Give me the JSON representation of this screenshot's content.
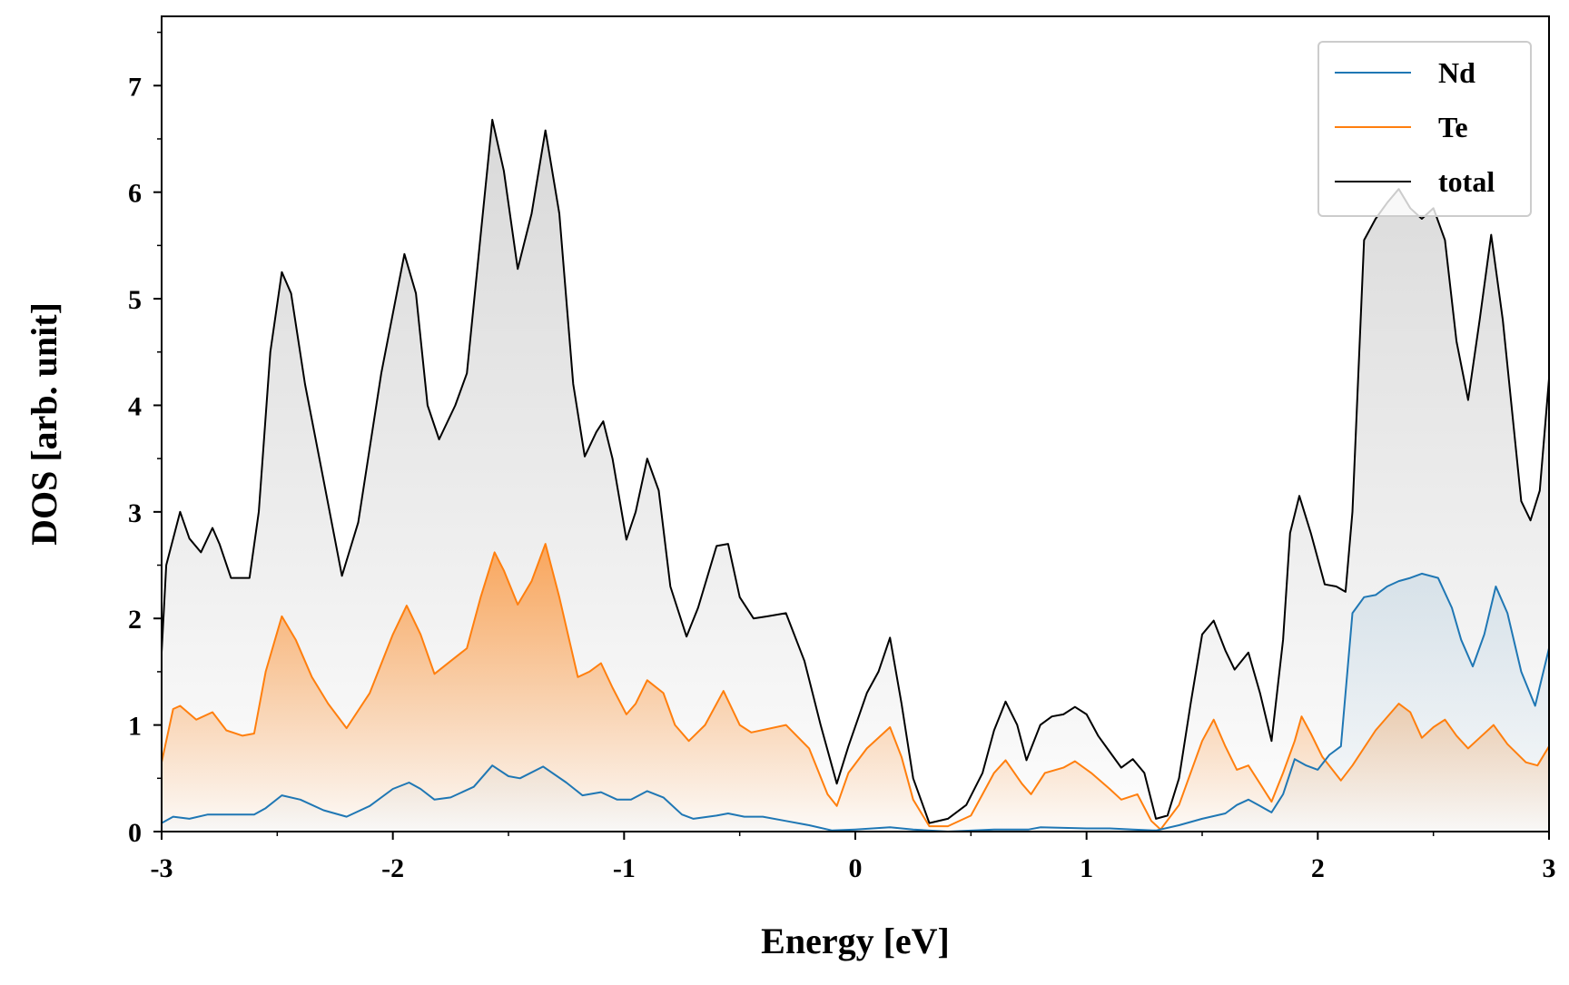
{
  "chart_data": {
    "type": "area",
    "xlabel": "Energy [eV]",
    "ylabel": "DOS [arb. unit]",
    "xlim": [
      -3,
      3
    ],
    "ylim": [
      0,
      7.65
    ],
    "x_ticks": [
      -3,
      -2,
      -1,
      0,
      1,
      2,
      3
    ],
    "x_tick_labels": [
      "-3",
      "-2",
      "-1",
      "0",
      "1",
      "2",
      "3"
    ],
    "y_ticks": [
      0,
      1,
      2,
      3,
      4,
      5,
      6,
      7
    ],
    "y_tick_labels": [
      "0",
      "1",
      "2",
      "3",
      "4",
      "5",
      "6",
      "7"
    ],
    "grid": false,
    "legend_position": "top-right",
    "legend": [
      "Nd",
      "Te",
      "total"
    ],
    "series": [
      {
        "name": "Nd",
        "color": "#1f77b4",
        "points": [
          [
            -3,
            0.08
          ],
          [
            -2.95,
            0.14
          ],
          [
            -2.88,
            0.12
          ],
          [
            -2.8,
            0.16
          ],
          [
            -2.6,
            0.16
          ],
          [
            -2.55,
            0.22
          ],
          [
            -2.48,
            0.34
          ],
          [
            -2.4,
            0.3
          ],
          [
            -2.3,
            0.2
          ],
          [
            -2.2,
            0.14
          ],
          [
            -2.1,
            0.24
          ],
          [
            -2.0,
            0.4
          ],
          [
            -1.93,
            0.46
          ],
          [
            -1.88,
            0.4
          ],
          [
            -1.82,
            0.3
          ],
          [
            -1.75,
            0.32
          ],
          [
            -1.65,
            0.42
          ],
          [
            -1.57,
            0.62
          ],
          [
            -1.5,
            0.52
          ],
          [
            -1.45,
            0.5
          ],
          [
            -1.35,
            0.61
          ],
          [
            -1.25,
            0.46
          ],
          [
            -1.18,
            0.34
          ],
          [
            -1.1,
            0.37
          ],
          [
            -1.03,
            0.3
          ],
          [
            -0.97,
            0.3
          ],
          [
            -0.9,
            0.38
          ],
          [
            -0.83,
            0.32
          ],
          [
            -0.75,
            0.16
          ],
          [
            -0.7,
            0.12
          ],
          [
            -0.6,
            0.15
          ],
          [
            -0.55,
            0.17
          ],
          [
            -0.48,
            0.14
          ],
          [
            -0.4,
            0.14
          ],
          [
            -0.3,
            0.1
          ],
          [
            -0.2,
            0.06
          ],
          [
            -0.1,
            0.01
          ],
          [
            0.0,
            0.02
          ],
          [
            0.15,
            0.04
          ],
          [
            0.25,
            0.02
          ],
          [
            0.4,
            0.0
          ],
          [
            0.6,
            0.02
          ],
          [
            0.75,
            0.02
          ],
          [
            0.8,
            0.04
          ],
          [
            1.0,
            0.03
          ],
          [
            1.1,
            0.03
          ],
          [
            1.2,
            0.02
          ],
          [
            1.3,
            0.01
          ],
          [
            1.4,
            0.06
          ],
          [
            1.5,
            0.12
          ],
          [
            1.6,
            0.17
          ],
          [
            1.65,
            0.25
          ],
          [
            1.7,
            0.3
          ],
          [
            1.75,
            0.24
          ],
          [
            1.8,
            0.18
          ],
          [
            1.85,
            0.35
          ],
          [
            1.9,
            0.68
          ],
          [
            1.95,
            0.62
          ],
          [
            2.0,
            0.58
          ],
          [
            2.05,
            0.72
          ],
          [
            2.1,
            0.8
          ],
          [
            2.15,
            2.05
          ],
          [
            2.2,
            2.2
          ],
          [
            2.25,
            2.22
          ],
          [
            2.3,
            2.3
          ],
          [
            2.35,
            2.35
          ],
          [
            2.4,
            2.38
          ],
          [
            2.45,
            2.42
          ],
          [
            2.52,
            2.38
          ],
          [
            2.58,
            2.1
          ],
          [
            2.62,
            1.8
          ],
          [
            2.67,
            1.55
          ],
          [
            2.72,
            1.85
          ],
          [
            2.77,
            2.3
          ],
          [
            2.82,
            2.05
          ],
          [
            2.88,
            1.5
          ],
          [
            2.94,
            1.18
          ],
          [
            3.0,
            1.72
          ]
        ]
      },
      {
        "name": "Te",
        "color": "#ff7f0e",
        "points": [
          [
            -3,
            0.65
          ],
          [
            -2.95,
            1.15
          ],
          [
            -2.92,
            1.18
          ],
          [
            -2.85,
            1.05
          ],
          [
            -2.78,
            1.12
          ],
          [
            -2.72,
            0.95
          ],
          [
            -2.65,
            0.9
          ],
          [
            -2.6,
            0.92
          ],
          [
            -2.55,
            1.5
          ],
          [
            -2.48,
            2.02
          ],
          [
            -2.42,
            1.8
          ],
          [
            -2.35,
            1.45
          ],
          [
            -2.28,
            1.2
          ],
          [
            -2.2,
            0.97
          ],
          [
            -2.1,
            1.3
          ],
          [
            -2.0,
            1.85
          ],
          [
            -1.94,
            2.12
          ],
          [
            -1.88,
            1.85
          ],
          [
            -1.82,
            1.48
          ],
          [
            -1.75,
            1.6
          ],
          [
            -1.68,
            1.72
          ],
          [
            -1.62,
            2.2
          ],
          [
            -1.56,
            2.62
          ],
          [
            -1.52,
            2.45
          ],
          [
            -1.46,
            2.13
          ],
          [
            -1.4,
            2.35
          ],
          [
            -1.34,
            2.7
          ],
          [
            -1.28,
            2.2
          ],
          [
            -1.2,
            1.45
          ],
          [
            -1.15,
            1.5
          ],
          [
            -1.1,
            1.58
          ],
          [
            -1.05,
            1.35
          ],
          [
            -0.99,
            1.1
          ],
          [
            -0.95,
            1.2
          ],
          [
            -0.9,
            1.42
          ],
          [
            -0.83,
            1.3
          ],
          [
            -0.78,
            1.0
          ],
          [
            -0.72,
            0.85
          ],
          [
            -0.65,
            1.0
          ],
          [
            -0.57,
            1.32
          ],
          [
            -0.5,
            1.0
          ],
          [
            -0.45,
            0.93
          ],
          [
            -0.3,
            1.0
          ],
          [
            -0.2,
            0.78
          ],
          [
            -0.12,
            0.35
          ],
          [
            -0.08,
            0.24
          ],
          [
            -0.03,
            0.55
          ],
          [
            0.05,
            0.78
          ],
          [
            0.15,
            0.98
          ],
          [
            0.2,
            0.7
          ],
          [
            0.25,
            0.3
          ],
          [
            0.32,
            0.05
          ],
          [
            0.4,
            0.05
          ],
          [
            0.5,
            0.15
          ],
          [
            0.55,
            0.35
          ],
          [
            0.6,
            0.55
          ],
          [
            0.65,
            0.67
          ],
          [
            0.72,
            0.45
          ],
          [
            0.76,
            0.35
          ],
          [
            0.82,
            0.55
          ],
          [
            0.9,
            0.6
          ],
          [
            0.95,
            0.66
          ],
          [
            1.02,
            0.55
          ],
          [
            1.1,
            0.4
          ],
          [
            1.15,
            0.3
          ],
          [
            1.22,
            0.35
          ],
          [
            1.28,
            0.1
          ],
          [
            1.32,
            0.02
          ],
          [
            1.4,
            0.25
          ],
          [
            1.5,
            0.85
          ],
          [
            1.55,
            1.05
          ],
          [
            1.6,
            0.8
          ],
          [
            1.65,
            0.58
          ],
          [
            1.7,
            0.62
          ],
          [
            1.75,
            0.45
          ],
          [
            1.8,
            0.28
          ],
          [
            1.85,
            0.55
          ],
          [
            1.9,
            0.85
          ],
          [
            1.93,
            1.08
          ],
          [
            1.97,
            0.92
          ],
          [
            2.02,
            0.7
          ],
          [
            2.1,
            0.48
          ],
          [
            2.15,
            0.62
          ],
          [
            2.25,
            0.95
          ],
          [
            2.35,
            1.2
          ],
          [
            2.4,
            1.12
          ],
          [
            2.45,
            0.88
          ],
          [
            2.5,
            0.98
          ],
          [
            2.55,
            1.05
          ],
          [
            2.6,
            0.9
          ],
          [
            2.65,
            0.78
          ],
          [
            2.7,
            0.88
          ],
          [
            2.76,
            1.0
          ],
          [
            2.82,
            0.82
          ],
          [
            2.9,
            0.65
          ],
          [
            2.95,
            0.62
          ],
          [
            3.0,
            0.8
          ]
        ]
      },
      {
        "name": "total",
        "color": "#000000",
        "points": [
          [
            -3,
            1.68
          ],
          [
            -2.98,
            2.5
          ],
          [
            -2.92,
            3.0
          ],
          [
            -2.88,
            2.75
          ],
          [
            -2.83,
            2.62
          ],
          [
            -2.78,
            2.85
          ],
          [
            -2.75,
            2.7
          ],
          [
            -2.7,
            2.38
          ],
          [
            -2.62,
            2.38
          ],
          [
            -2.58,
            3.0
          ],
          [
            -2.53,
            4.5
          ],
          [
            -2.48,
            5.25
          ],
          [
            -2.44,
            5.05
          ],
          [
            -2.38,
            4.2
          ],
          [
            -2.3,
            3.3
          ],
          [
            -2.22,
            2.4
          ],
          [
            -2.15,
            2.9
          ],
          [
            -2.05,
            4.3
          ],
          [
            -1.95,
            5.42
          ],
          [
            -1.9,
            5.05
          ],
          [
            -1.85,
            4.0
          ],
          [
            -1.8,
            3.68
          ],
          [
            -1.73,
            4.0
          ],
          [
            -1.68,
            4.3
          ],
          [
            -1.62,
            5.6
          ],
          [
            -1.57,
            6.68
          ],
          [
            -1.52,
            6.2
          ],
          [
            -1.46,
            5.28
          ],
          [
            -1.4,
            5.8
          ],
          [
            -1.34,
            6.58
          ],
          [
            -1.28,
            5.8
          ],
          [
            -1.22,
            4.2
          ],
          [
            -1.17,
            3.52
          ],
          [
            -1.12,
            3.75
          ],
          [
            -1.09,
            3.85
          ],
          [
            -1.05,
            3.5
          ],
          [
            -0.99,
            2.74
          ],
          [
            -0.95,
            3.0
          ],
          [
            -0.9,
            3.5
          ],
          [
            -0.85,
            3.2
          ],
          [
            -0.8,
            2.3
          ],
          [
            -0.73,
            1.83
          ],
          [
            -0.68,
            2.1
          ],
          [
            -0.6,
            2.68
          ],
          [
            -0.55,
            2.7
          ],
          [
            -0.5,
            2.2
          ],
          [
            -0.44,
            2.0
          ],
          [
            -0.38,
            2.02
          ],
          [
            -0.3,
            2.05
          ],
          [
            -0.22,
            1.6
          ],
          [
            -0.15,
            1.0
          ],
          [
            -0.08,
            0.45
          ],
          [
            -0.03,
            0.8
          ],
          [
            0.05,
            1.3
          ],
          [
            0.1,
            1.5
          ],
          [
            0.15,
            1.82
          ],
          [
            0.2,
            1.2
          ],
          [
            0.25,
            0.5
          ],
          [
            0.32,
            0.08
          ],
          [
            0.4,
            0.12
          ],
          [
            0.48,
            0.25
          ],
          [
            0.55,
            0.55
          ],
          [
            0.6,
            0.95
          ],
          [
            0.65,
            1.22
          ],
          [
            0.7,
            1.0
          ],
          [
            0.74,
            0.67
          ],
          [
            0.8,
            1.0
          ],
          [
            0.85,
            1.08
          ],
          [
            0.9,
            1.1
          ],
          [
            0.95,
            1.17
          ],
          [
            1.0,
            1.1
          ],
          [
            1.05,
            0.9
          ],
          [
            1.1,
            0.75
          ],
          [
            1.15,
            0.6
          ],
          [
            1.2,
            0.68
          ],
          [
            1.25,
            0.55
          ],
          [
            1.3,
            0.12
          ],
          [
            1.35,
            0.15
          ],
          [
            1.4,
            0.5
          ],
          [
            1.45,
            1.2
          ],
          [
            1.5,
            1.85
          ],
          [
            1.55,
            1.98
          ],
          [
            1.6,
            1.7
          ],
          [
            1.64,
            1.52
          ],
          [
            1.7,
            1.68
          ],
          [
            1.75,
            1.3
          ],
          [
            1.8,
            0.85
          ],
          [
            1.85,
            1.8
          ],
          [
            1.88,
            2.8
          ],
          [
            1.92,
            3.15
          ],
          [
            1.97,
            2.8
          ],
          [
            2.03,
            2.32
          ],
          [
            2.08,
            2.3
          ],
          [
            2.12,
            2.25
          ],
          [
            2.15,
            3.0
          ],
          [
            2.2,
            5.55
          ],
          [
            2.25,
            5.75
          ],
          [
            2.3,
            5.9
          ],
          [
            2.35,
            6.03
          ],
          [
            2.4,
            5.85
          ],
          [
            2.45,
            5.75
          ],
          [
            2.5,
            5.85
          ],
          [
            2.55,
            5.55
          ],
          [
            2.6,
            4.6
          ],
          [
            2.65,
            4.05
          ],
          [
            2.7,
            4.8
          ],
          [
            2.75,
            5.6
          ],
          [
            2.8,
            4.8
          ],
          [
            2.88,
            3.1
          ],
          [
            2.92,
            2.92
          ],
          [
            2.96,
            3.2
          ],
          [
            3.0,
            4.25
          ]
        ]
      }
    ]
  }
}
